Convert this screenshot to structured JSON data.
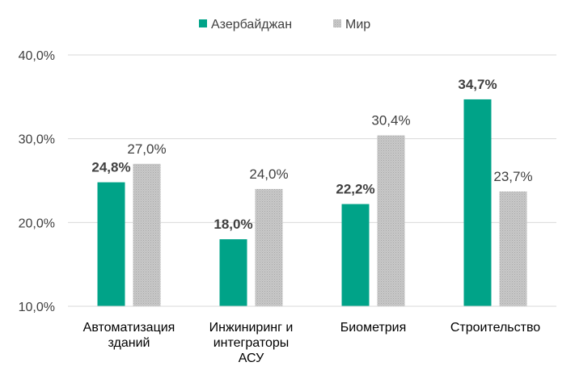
{
  "chart_data": {
    "type": "bar",
    "categories": [
      [
        "Автоматизация",
        "зданий"
      ],
      [
        "Инжиниринг и",
        "интеграторы",
        "АСУ"
      ],
      [
        "Биометрия"
      ],
      [
        "Строительство"
      ]
    ],
    "series": [
      {
        "name": "Азербайджан",
        "color": "#00A388",
        "values": [
          24.8,
          18.0,
          22.2,
          34.7
        ],
        "labels": [
          "24,8%",
          "18,0%",
          "22,2%",
          "34,7%"
        ],
        "label_weight": "bold"
      },
      {
        "name": "Мир",
        "color": "#BFBFBF",
        "pattern": "dotted",
        "values": [
          27.0,
          24.0,
          30.4,
          23.7
        ],
        "labels": [
          "27,0%",
          "24,0%",
          "30,4%",
          "23,7%"
        ],
        "label_weight": "normal"
      }
    ],
    "y_ticks": [
      10,
      20,
      30,
      40
    ],
    "y_tick_labels": [
      "10,0%",
      "20,0%",
      "30,0%",
      "40,0%"
    ],
    "ylim": [
      10,
      40
    ],
    "grid": true,
    "legend_position": "top-center",
    "title": "",
    "xlabel": "",
    "ylabel": ""
  }
}
